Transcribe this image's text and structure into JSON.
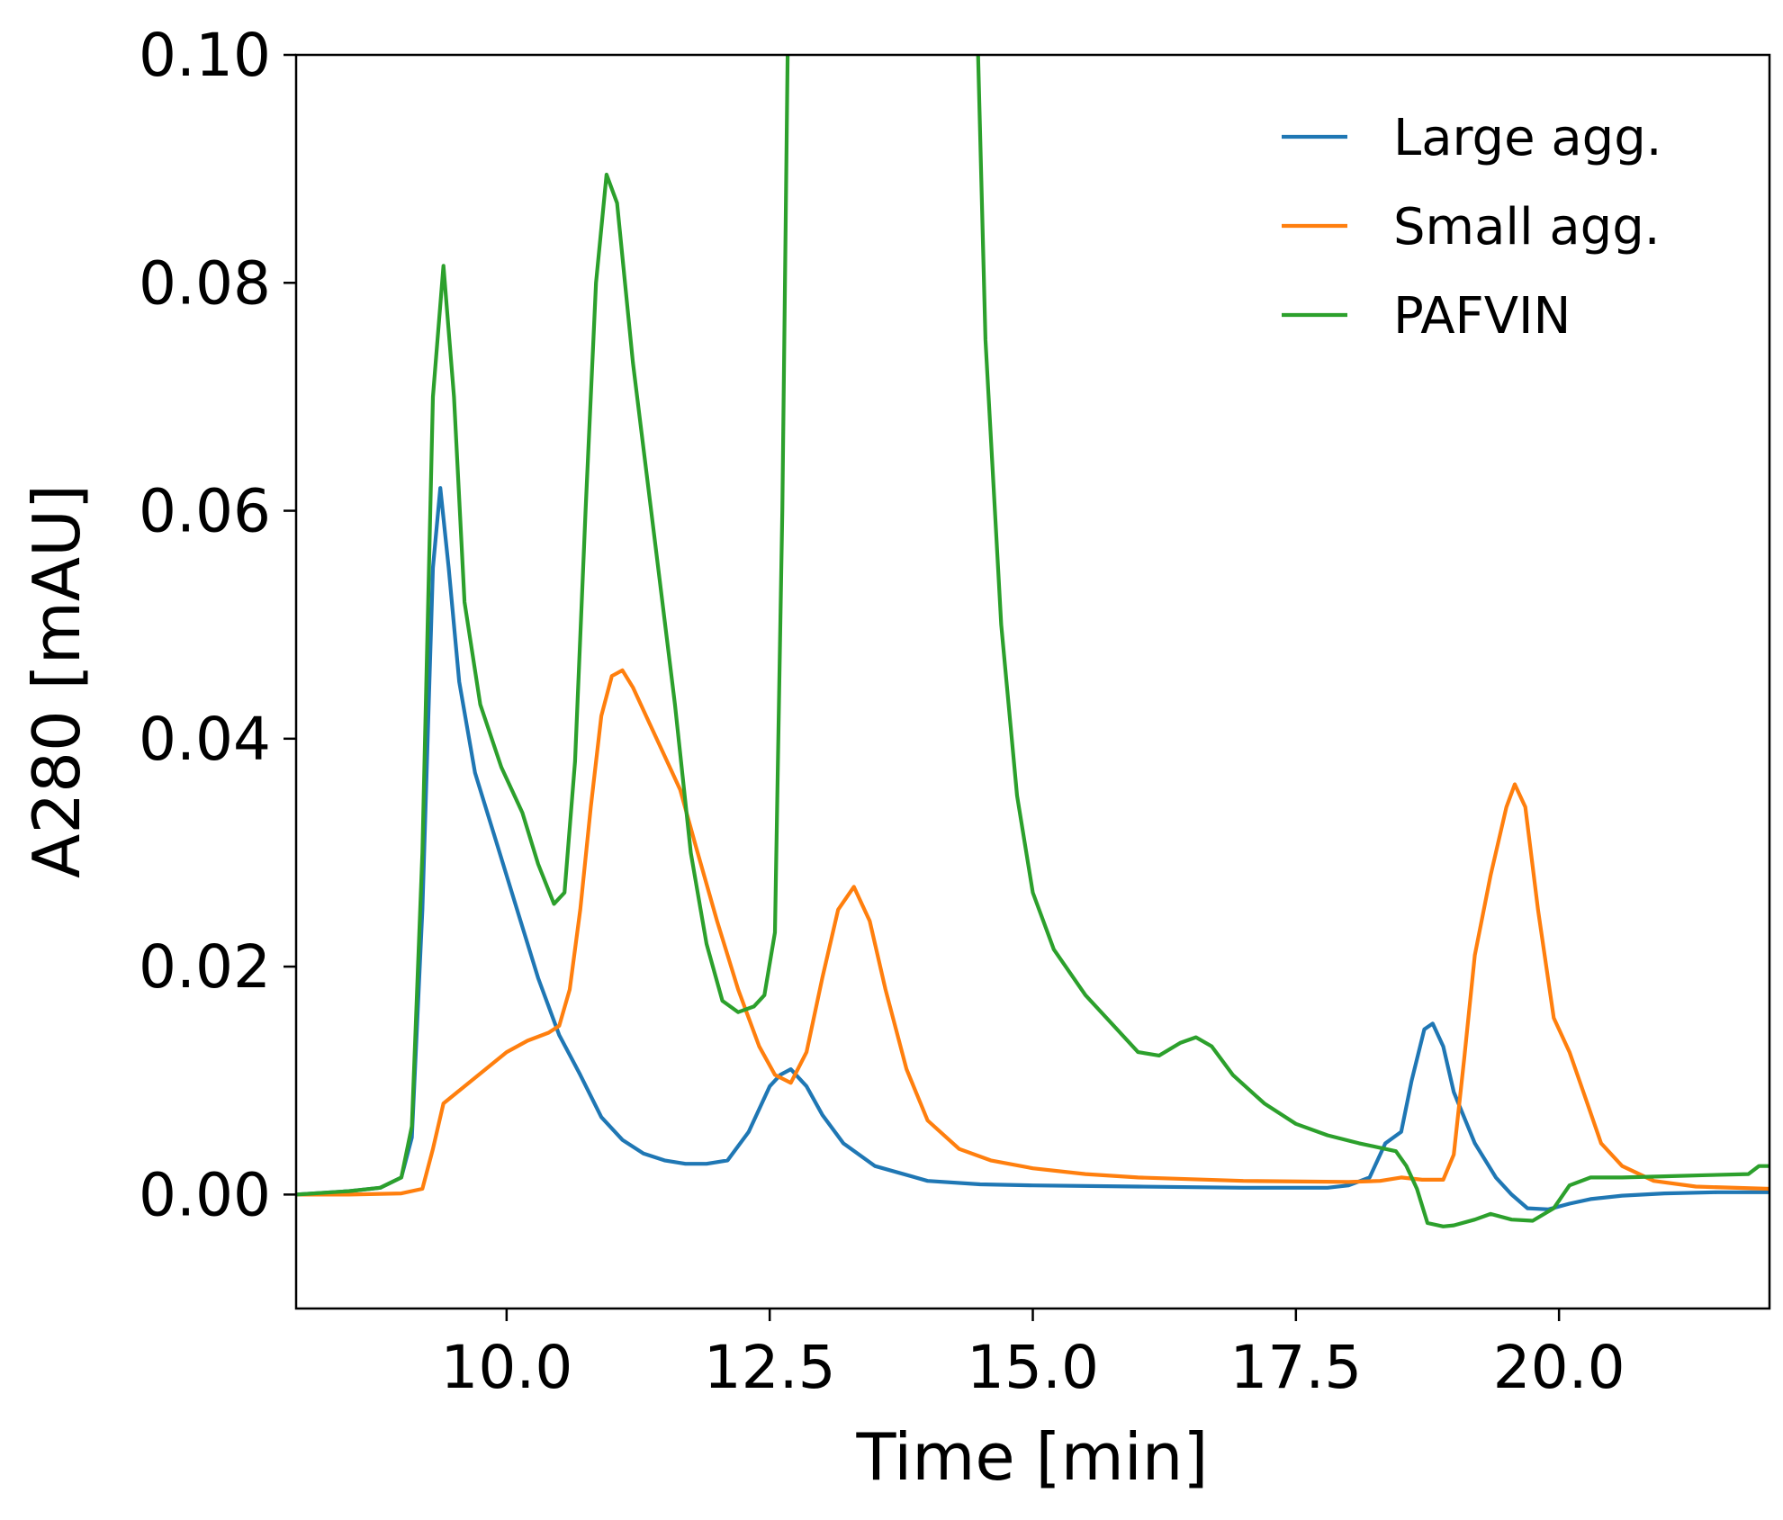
{
  "chart_data": {
    "type": "line",
    "xlabel": "Time [min]",
    "ylabel": "A280 [mAU]",
    "xlim": [
      8.0,
      22.0
    ],
    "ylim": [
      -0.01,
      0.1
    ],
    "grid": false,
    "legend_position": "top-right",
    "x_ticks": [
      10.0,
      12.5,
      15.0,
      17.5,
      20.0
    ],
    "x_tick_labels": [
      "10.0",
      "12.5",
      "15.0",
      "17.5",
      "20.0"
    ],
    "y_ticks": [
      0.0,
      0.02,
      0.04,
      0.06,
      0.08,
      0.1
    ],
    "y_tick_labels": [
      "0.00",
      "0.02",
      "0.04",
      "0.06",
      "0.08",
      "0.10"
    ],
    "series": [
      {
        "name": "Large agg.",
        "color": "#1f77b4",
        "points": [
          [
            8.0,
            0.0
          ],
          [
            8.5,
            0.0003
          ],
          [
            8.8,
            0.0006
          ],
          [
            9.0,
            0.0015
          ],
          [
            9.1,
            0.005
          ],
          [
            9.2,
            0.025
          ],
          [
            9.3,
            0.055
          ],
          [
            9.37,
            0.062
          ],
          [
            9.45,
            0.055
          ],
          [
            9.55,
            0.045
          ],
          [
            9.7,
            0.037
          ],
          [
            9.9,
            0.031
          ],
          [
            10.1,
            0.025
          ],
          [
            10.3,
            0.019
          ],
          [
            10.5,
            0.014
          ],
          [
            10.7,
            0.0105
          ],
          [
            10.9,
            0.0068
          ],
          [
            11.1,
            0.0048
          ],
          [
            11.3,
            0.0036
          ],
          [
            11.5,
            0.003
          ],
          [
            11.7,
            0.0027
          ],
          [
            11.9,
            0.0027
          ],
          [
            12.1,
            0.003
          ],
          [
            12.3,
            0.0055
          ],
          [
            12.5,
            0.0095
          ],
          [
            12.6,
            0.0105
          ],
          [
            12.7,
            0.011
          ],
          [
            12.85,
            0.0095
          ],
          [
            13.0,
            0.007
          ],
          [
            13.2,
            0.0045
          ],
          [
            13.5,
            0.0025
          ],
          [
            14.0,
            0.0012
          ],
          [
            14.5,
            0.0009
          ],
          [
            15.0,
            0.0008
          ],
          [
            16.0,
            0.0007
          ],
          [
            17.0,
            0.0006
          ],
          [
            17.8,
            0.0006
          ],
          [
            18.0,
            0.0008
          ],
          [
            18.2,
            0.0015
          ],
          [
            18.35,
            0.0045
          ],
          [
            18.5,
            0.0055
          ],
          [
            18.6,
            0.01
          ],
          [
            18.72,
            0.0145
          ],
          [
            18.8,
            0.015
          ],
          [
            18.9,
            0.013
          ],
          [
            19.0,
            0.009
          ],
          [
            19.2,
            0.0045
          ],
          [
            19.4,
            0.0015
          ],
          [
            19.55,
            0.0
          ],
          [
            19.7,
            -0.0012
          ],
          [
            19.9,
            -0.0013
          ],
          [
            20.1,
            -0.0008
          ],
          [
            20.3,
            -0.0004
          ],
          [
            20.6,
            -0.0001
          ],
          [
            21.0,
            0.0001
          ],
          [
            21.5,
            0.0002
          ],
          [
            22.0,
            0.0002
          ]
        ]
      },
      {
        "name": "Small agg.",
        "color": "#ff7f0e",
        "points": [
          [
            8.0,
            0.0
          ],
          [
            8.5,
            0.0
          ],
          [
            9.0,
            0.0001
          ],
          [
            9.2,
            0.0005
          ],
          [
            9.3,
            0.004
          ],
          [
            9.4,
            0.008
          ],
          [
            9.6,
            0.0095
          ],
          [
            9.8,
            0.011
          ],
          [
            10.0,
            0.0125
          ],
          [
            10.2,
            0.0135
          ],
          [
            10.4,
            0.0142
          ],
          [
            10.5,
            0.0148
          ],
          [
            10.6,
            0.018
          ],
          [
            10.7,
            0.025
          ],
          [
            10.8,
            0.034
          ],
          [
            10.9,
            0.042
          ],
          [
            11.0,
            0.0455
          ],
          [
            11.1,
            0.046
          ],
          [
            11.2,
            0.0445
          ],
          [
            11.35,
            0.0415
          ],
          [
            11.5,
            0.0385
          ],
          [
            11.65,
            0.0355
          ],
          [
            11.8,
            0.0305
          ],
          [
            12.0,
            0.024
          ],
          [
            12.2,
            0.018
          ],
          [
            12.4,
            0.013
          ],
          [
            12.55,
            0.0105
          ],
          [
            12.7,
            0.0098
          ],
          [
            12.85,
            0.0125
          ],
          [
            13.0,
            0.019
          ],
          [
            13.15,
            0.025
          ],
          [
            13.3,
            0.027
          ],
          [
            13.45,
            0.024
          ],
          [
            13.6,
            0.018
          ],
          [
            13.8,
            0.011
          ],
          [
            14.0,
            0.0065
          ],
          [
            14.3,
            0.004
          ],
          [
            14.6,
            0.003
          ],
          [
            15.0,
            0.0023
          ],
          [
            15.5,
            0.0018
          ],
          [
            16.0,
            0.0015
          ],
          [
            17.0,
            0.0012
          ],
          [
            18.0,
            0.0011
          ],
          [
            18.3,
            0.0012
          ],
          [
            18.5,
            0.0015
          ],
          [
            18.7,
            0.0013
          ],
          [
            18.9,
            0.0013
          ],
          [
            19.0,
            0.0035
          ],
          [
            19.1,
            0.012
          ],
          [
            19.2,
            0.021
          ],
          [
            19.35,
            0.028
          ],
          [
            19.5,
            0.034
          ],
          [
            19.58,
            0.036
          ],
          [
            19.68,
            0.034
          ],
          [
            19.8,
            0.025
          ],
          [
            19.95,
            0.0155
          ],
          [
            20.1,
            0.0125
          ],
          [
            20.25,
            0.0085
          ],
          [
            20.4,
            0.0045
          ],
          [
            20.6,
            0.0025
          ],
          [
            20.9,
            0.0012
          ],
          [
            21.3,
            0.0007
          ],
          [
            22.0,
            0.0005
          ]
        ]
      },
      {
        "name": "PAFVIN",
        "color": "#2ca02c",
        "points": [
          [
            8.0,
            0.0
          ],
          [
            8.5,
            0.0003
          ],
          [
            8.8,
            0.0006
          ],
          [
            9.0,
            0.0015
          ],
          [
            9.1,
            0.006
          ],
          [
            9.2,
            0.03
          ],
          [
            9.3,
            0.07
          ],
          [
            9.4,
            0.0815
          ],
          [
            9.5,
            0.07
          ],
          [
            9.6,
            0.052
          ],
          [
            9.75,
            0.043
          ],
          [
            9.95,
            0.0375
          ],
          [
            10.15,
            0.0335
          ],
          [
            10.3,
            0.029
          ],
          [
            10.45,
            0.0255
          ],
          [
            10.55,
            0.0265
          ],
          [
            10.65,
            0.038
          ],
          [
            10.75,
            0.06
          ],
          [
            10.85,
            0.08
          ],
          [
            10.95,
            0.0895
          ],
          [
            11.05,
            0.087
          ],
          [
            11.2,
            0.073
          ],
          [
            11.4,
            0.058
          ],
          [
            11.6,
            0.043
          ],
          [
            11.75,
            0.03
          ],
          [
            11.9,
            0.022
          ],
          [
            12.05,
            0.017
          ],
          [
            12.2,
            0.016
          ],
          [
            12.35,
            0.0165
          ],
          [
            12.45,
            0.0175
          ],
          [
            12.55,
            0.023
          ],
          [
            12.62,
            0.06
          ],
          [
            12.67,
            0.1
          ],
          [
            12.7,
            0.12
          ],
          [
            14.35,
            0.12
          ],
          [
            14.48,
            0.1
          ],
          [
            14.55,
            0.075
          ],
          [
            14.7,
            0.05
          ],
          [
            14.85,
            0.035
          ],
          [
            15.0,
            0.0265
          ],
          [
            15.2,
            0.0215
          ],
          [
            15.5,
            0.0175
          ],
          [
            15.8,
            0.0145
          ],
          [
            16.0,
            0.0125
          ],
          [
            16.2,
            0.0122
          ],
          [
            16.4,
            0.0133
          ],
          [
            16.55,
            0.0138
          ],
          [
            16.7,
            0.013
          ],
          [
            16.9,
            0.0105
          ],
          [
            17.2,
            0.008
          ],
          [
            17.5,
            0.0062
          ],
          [
            17.8,
            0.0052
          ],
          [
            18.1,
            0.0045
          ],
          [
            18.3,
            0.0041
          ],
          [
            18.45,
            0.0038
          ],
          [
            18.55,
            0.0025
          ],
          [
            18.65,
            0.0005
          ],
          [
            18.75,
            -0.0025
          ],
          [
            18.9,
            -0.0028
          ],
          [
            19.0,
            -0.0027
          ],
          [
            19.2,
            -0.0022
          ],
          [
            19.35,
            -0.0017
          ],
          [
            19.55,
            -0.0022
          ],
          [
            19.75,
            -0.0023
          ],
          [
            19.95,
            -0.0012
          ],
          [
            20.1,
            0.0008
          ],
          [
            20.3,
            0.0015
          ],
          [
            20.6,
            0.0015
          ],
          [
            21.0,
            0.0016
          ],
          [
            21.4,
            0.0017
          ],
          [
            21.8,
            0.0018
          ],
          [
            21.9,
            0.0025
          ],
          [
            22.0,
            0.0025
          ]
        ]
      }
    ]
  }
}
